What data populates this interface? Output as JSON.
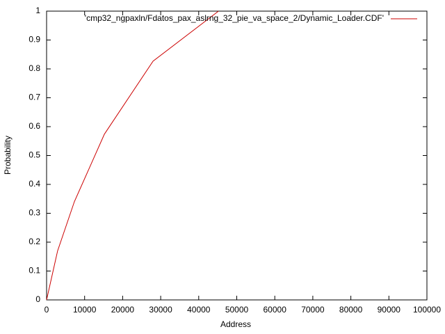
{
  "chart_data": {
    "type": "line",
    "xlabel": "Address",
    "ylabel": "Probability",
    "x": [
      0,
      2900,
      7300,
      15200,
      28000,
      45200
    ],
    "series": [
      {
        "name": "'cmp32_ngpaxln/Fdatos_pax_aslrng_32_pie_va_space_2/Dynamic_Loader.CDF'",
        "color": "#cc0000",
        "values": [
          0,
          0.17,
          0.34,
          0.574,
          0.827,
          1.0
        ]
      }
    ],
    "xlim": [
      0,
      100000
    ],
    "xticks": [
      0,
      10000,
      20000,
      30000,
      40000,
      50000,
      60000,
      70000,
      80000,
      90000,
      100000
    ],
    "ylim": [
      0,
      1
    ],
    "yticks": [
      0,
      0.1,
      0.2,
      0.3,
      0.4,
      0.5,
      0.6,
      0.7,
      0.8,
      0.9,
      1
    ],
    "grid": false,
    "legend": "top right"
  }
}
